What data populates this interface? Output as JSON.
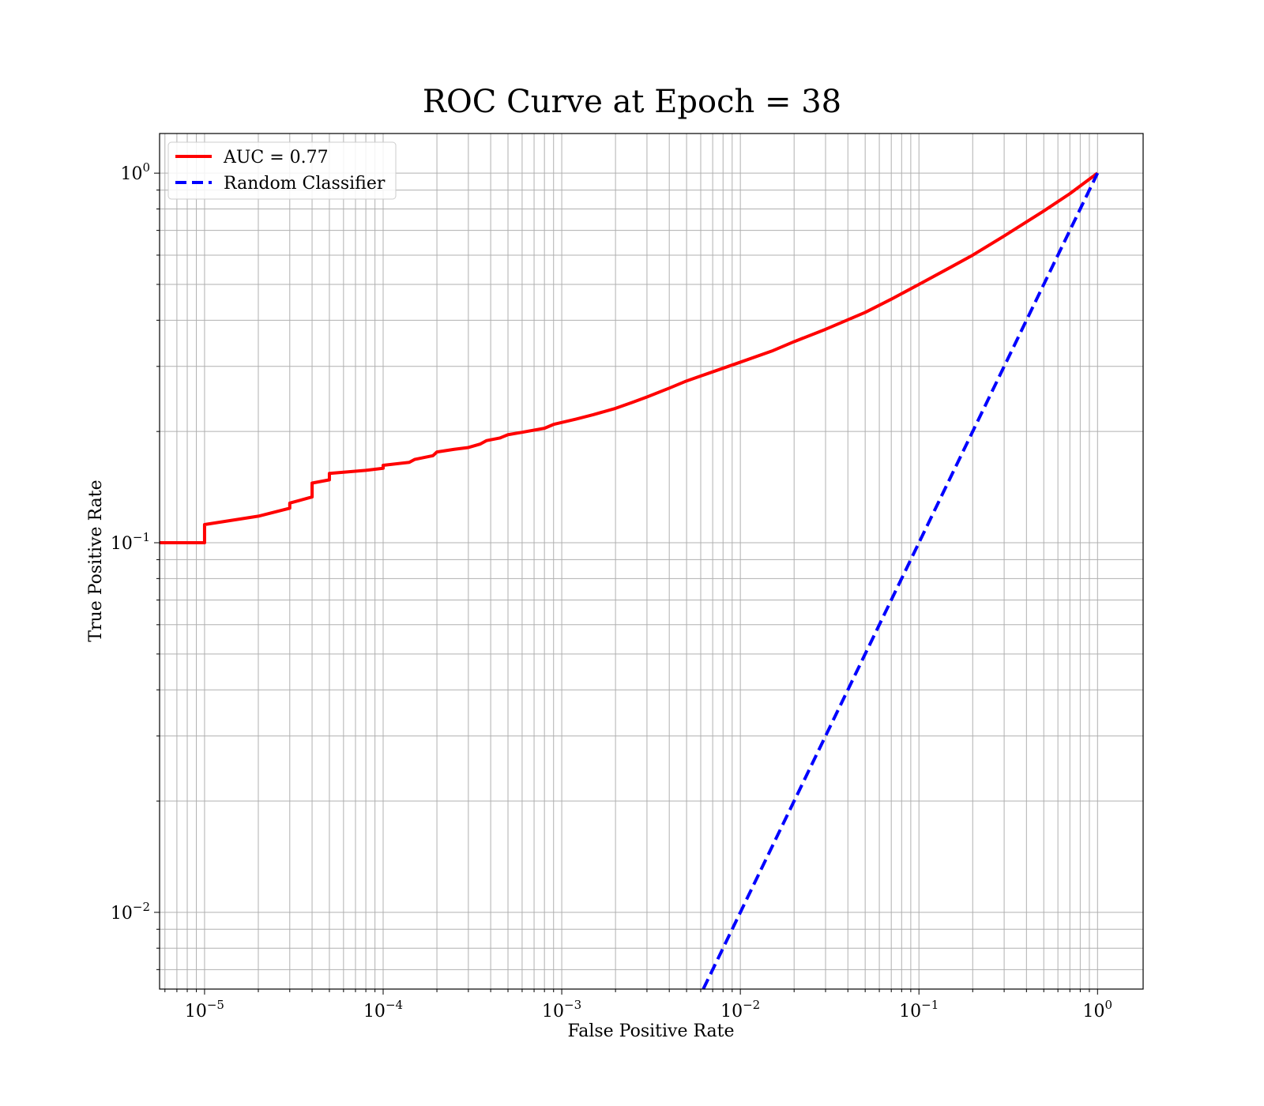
{
  "chart_data": {
    "type": "line",
    "title": "ROC Curve at Epoch = 38",
    "xlabel": "False Positive Rate",
    "ylabel": "True Positive Rate",
    "xscale": "log",
    "yscale": "log",
    "xlim": [
      5.6e-06,
      1.8
    ],
    "ylim": [
      0.0062,
      1.28
    ],
    "grid": true,
    "grid_minor": true,
    "legend_position": "top-left",
    "x_ticks": [
      {
        "base": "10",
        "exp": "−5",
        "value": 1e-05
      },
      {
        "base": "10",
        "exp": "−4",
        "value": 0.0001
      },
      {
        "base": "10",
        "exp": "−3",
        "value": 0.001
      },
      {
        "base": "10",
        "exp": "−2",
        "value": 0.01
      },
      {
        "base": "10",
        "exp": "−1",
        "value": 0.1
      },
      {
        "base": "10",
        "exp": "0",
        "value": 1
      }
    ],
    "y_ticks": [
      {
        "base": "10",
        "exp": "−2",
        "value": 0.01
      },
      {
        "base": "10",
        "exp": "−1",
        "value": 0.1
      },
      {
        "base": "10",
        "exp": "0",
        "value": 1
      }
    ],
    "series": [
      {
        "name": "AUC = 0.77",
        "color": "#ff0000",
        "style": "solid",
        "points": [
          [
            5.6e-06,
            0.1
          ],
          [
            1e-05,
            0.1
          ],
          [
            1e-05,
            0.112
          ],
          [
            2e-05,
            0.118
          ],
          [
            3e-05,
            0.124
          ],
          [
            3e-05,
            0.128
          ],
          [
            4e-05,
            0.133
          ],
          [
            4e-05,
            0.145
          ],
          [
            5e-05,
            0.148
          ],
          [
            5e-05,
            0.154
          ],
          [
            8e-05,
            0.157
          ],
          [
            0.0001,
            0.159
          ],
          [
            0.0001,
            0.162
          ],
          [
            0.00014,
            0.165
          ],
          [
            0.00015,
            0.168
          ],
          [
            0.00019,
            0.172
          ],
          [
            0.0002,
            0.176
          ],
          [
            0.00025,
            0.179
          ],
          [
            0.0003,
            0.181
          ],
          [
            0.00035,
            0.185
          ],
          [
            0.00038,
            0.189
          ],
          [
            0.00045,
            0.192
          ],
          [
            0.0005,
            0.196
          ],
          [
            0.0006,
            0.199
          ],
          [
            0.0008,
            0.204
          ],
          [
            0.0009,
            0.209
          ],
          [
            0.0012,
            0.216
          ],
          [
            0.0015,
            0.222
          ],
          [
            0.002,
            0.231
          ],
          [
            0.0025,
            0.24
          ],
          [
            0.003,
            0.248
          ],
          [
            0.004,
            0.262
          ],
          [
            0.005,
            0.274
          ],
          [
            0.007,
            0.29
          ],
          [
            0.01,
            0.308
          ],
          [
            0.015,
            0.33
          ],
          [
            0.02,
            0.35
          ],
          [
            0.03,
            0.378
          ],
          [
            0.05,
            0.42
          ],
          [
            0.07,
            0.456
          ],
          [
            0.1,
            0.5
          ],
          [
            0.15,
            0.556
          ],
          [
            0.2,
            0.6
          ],
          [
            0.3,
            0.676
          ],
          [
            0.5,
            0.79
          ],
          [
            0.7,
            0.88
          ],
          [
            1,
            1
          ]
        ]
      },
      {
        "name": "Random Classifier",
        "color": "#0000ff",
        "style": "dashed",
        "points": [
          [
            0.0062,
            0.0062
          ],
          [
            1,
            1
          ]
        ]
      }
    ]
  }
}
